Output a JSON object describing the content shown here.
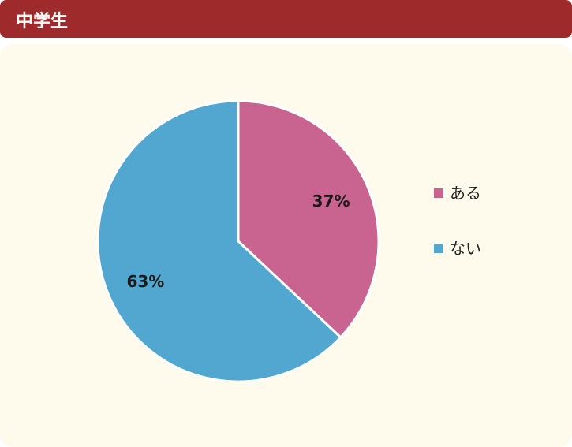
{
  "header": {
    "title": "中学生"
  },
  "colors": {
    "header_bg": "#9e2a2b",
    "panel_bg": "#fefbed",
    "slice_1": "#c96490",
    "slice_2": "#51a7d0"
  },
  "chart_data": {
    "type": "pie",
    "title": "中学生",
    "slices": [
      {
        "label": "ある",
        "value": 37,
        "display": "37%",
        "color": "#c96490"
      },
      {
        "label": "ない",
        "value": 63,
        "display": "63%",
        "color": "#51a7d0"
      }
    ],
    "start_angle": "12 o'clock",
    "direction": "clockwise",
    "legend_position": "right"
  }
}
